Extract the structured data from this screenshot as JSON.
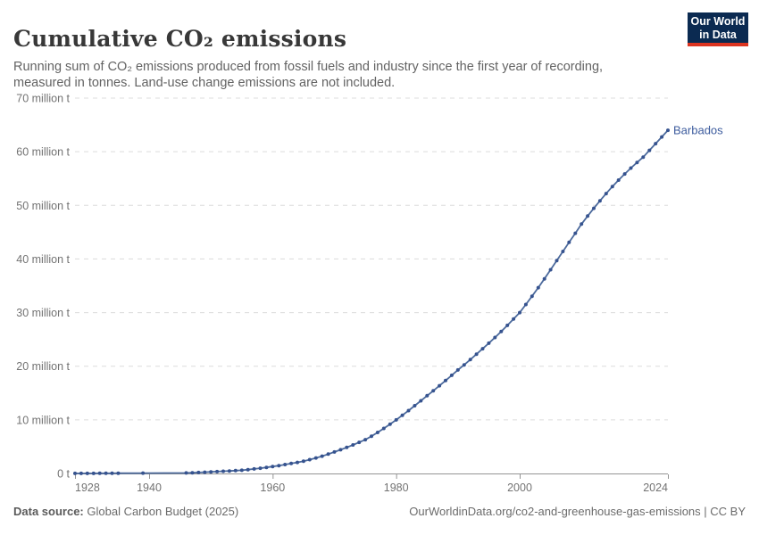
{
  "header": {
    "title": "Cumulative CO₂ emissions",
    "subtitle": "Running sum of CO₂ emissions produced from fossil fuels and industry since the first year of recording, measured in tonnes. Land-use change emissions are not included."
  },
  "logo": {
    "line1": "Our World",
    "line2": "in Data",
    "bg_color": "#0b2a51",
    "bar_color": "#dc3420"
  },
  "chart_data": {
    "type": "line",
    "title": "Cumulative CO₂ emissions",
    "entity_label": "Barbados",
    "unit": "million tonnes",
    "xlim": [
      1928,
      2024
    ],
    "ylim": [
      0,
      70
    ],
    "grid": "horizontal-dashed",
    "x_ticks": [
      1928,
      1940,
      1960,
      1980,
      2000,
      2024
    ],
    "y_ticks": [
      0,
      10,
      20,
      30,
      40,
      50,
      60,
      70
    ],
    "y_tick_labels": [
      "0 t",
      "10 million t",
      "20 million t",
      "30 million t",
      "40 million t",
      "50 million t",
      "60 million t",
      "70 million t"
    ],
    "line_color": "#4c6a9c",
    "marker_color": "#36538f",
    "label_color": "#3d5c9e",
    "series": [
      {
        "name": "Barbados",
        "x": [
          1928,
          1929,
          1930,
          1931,
          1932,
          1933,
          1934,
          1935,
          1939,
          1946,
          1947,
          1948,
          1949,
          1950,
          1951,
          1952,
          1953,
          1954,
          1955,
          1956,
          1957,
          1958,
          1959,
          1960,
          1961,
          1962,
          1963,
          1964,
          1965,
          1966,
          1967,
          1968,
          1969,
          1970,
          1971,
          1972,
          1973,
          1974,
          1975,
          1976,
          1977,
          1978,
          1979,
          1980,
          1981,
          1982,
          1983,
          1984,
          1985,
          1986,
          1987,
          1988,
          1989,
          1990,
          1991,
          1992,
          1993,
          1994,
          1995,
          1996,
          1997,
          1998,
          1999,
          2000,
          2001,
          2002,
          2003,
          2004,
          2005,
          2006,
          2007,
          2008,
          2009,
          2010,
          2011,
          2012,
          2013,
          2014,
          2015,
          2016,
          2017,
          2018,
          2019,
          2020,
          2021,
          2022,
          2023,
          2024
        ],
        "y": [
          0.01,
          0.01,
          0.02,
          0.02,
          0.03,
          0.04,
          0.04,
          0.05,
          0.07,
          0.1,
          0.14,
          0.19,
          0.24,
          0.3,
          0.35,
          0.41,
          0.47,
          0.53,
          0.6,
          0.71,
          0.84,
          0.98,
          1.13,
          1.3,
          1.47,
          1.66,
          1.86,
          2.07,
          2.3,
          2.58,
          2.89,
          3.23,
          3.6,
          4.0,
          4.42,
          4.86,
          5.32,
          5.8,
          6.3,
          6.95,
          7.65,
          8.4,
          9.2,
          10.0,
          10.85,
          11.73,
          12.63,
          13.55,
          14.5,
          15.42,
          16.36,
          17.32,
          18.3,
          19.3,
          20.26,
          21.24,
          22.24,
          23.26,
          24.3,
          25.36,
          26.47,
          27.61,
          28.79,
          30.0,
          31.5,
          33.05,
          34.65,
          36.3,
          38.0,
          39.7,
          41.4,
          43.1,
          44.8,
          46.5,
          48.0,
          49.45,
          50.85,
          52.2,
          53.5,
          54.7,
          55.85,
          56.95,
          58.0,
          59.0,
          60.25,
          61.5,
          62.75,
          64.0
        ]
      }
    ]
  },
  "footer": {
    "source_label": "Data source:",
    "source_value": "Global Carbon Budget (2025)",
    "credit": "OurWorldinData.org/co2-and-greenhouse-gas-emissions | CC BY"
  }
}
